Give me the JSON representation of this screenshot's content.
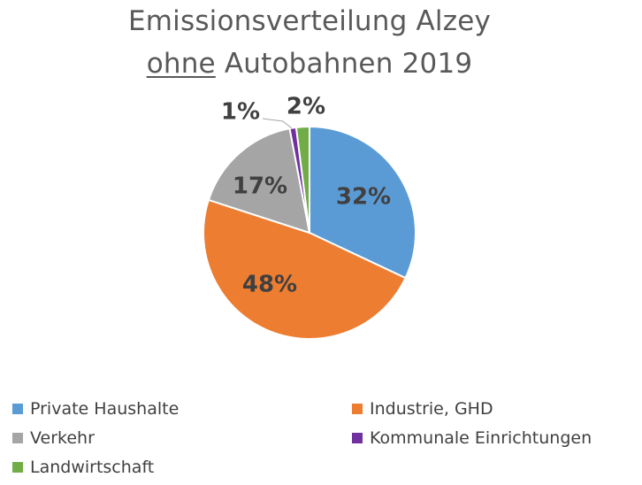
{
  "chart_data": {
    "type": "pie",
    "title_line1": "Emissionsverteilung Alzey",
    "title_line2_underlined": "ohne",
    "title_line2_rest": " Autobahnen 2019",
    "categories": [
      "Private Haushalte",
      "Industrie, GHD",
      "Verkehr",
      "Kommunale Einrichtungen",
      "Landwirtschaft"
    ],
    "values": [
      32,
      48,
      17,
      1,
      2
    ],
    "labels": [
      "32%",
      "48%",
      "17%",
      "1%",
      "2%"
    ],
    "colors": [
      "#5B9BD5",
      "#ED7D31",
      "#A5A5A5",
      "#7030A0",
      "#70AD47"
    ],
    "legend_position": "bottom"
  }
}
